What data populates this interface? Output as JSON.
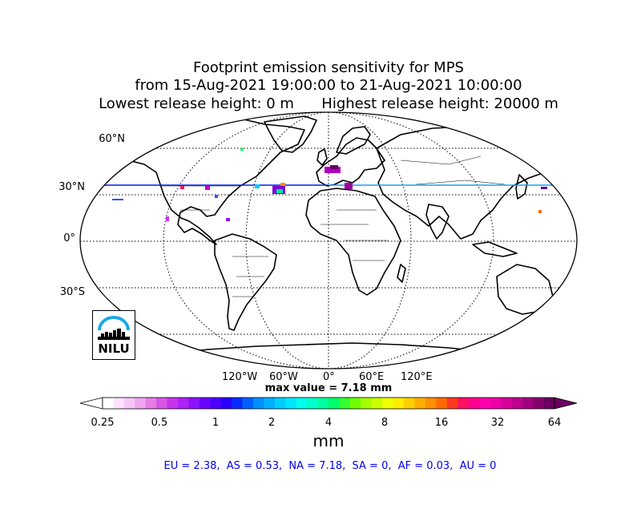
{
  "title": {
    "line1": "Footprint emission sensitivity for MPS",
    "line2": "from 15-Aug-2021 19:00:00 to 21-Aug-2021 10:00:00",
    "line3": "Lowest release height: 0 m      Highest release height: 20000 m"
  },
  "map": {
    "projection": "robinson",
    "lat_labels": [
      "60°N",
      "30°N",
      "0°",
      "30°S"
    ],
    "lon_labels": [
      "120°W",
      "60°W",
      "0°",
      "60°E",
      "120°E"
    ],
    "graticule_style": "dotted"
  },
  "logo": {
    "text": "NILU"
  },
  "max_value_text": "max value = 7.18 mm",
  "colorbar": {
    "unit": "mm",
    "ticks": [
      "0.25",
      "0.5",
      "1",
      "2",
      "4",
      "8",
      "16",
      "32",
      "64"
    ],
    "colors": [
      "#ffffff",
      "#fde4fd",
      "#f7c6f7",
      "#f0a6f0",
      "#e67ce6",
      "#d856e6",
      "#c833ee",
      "#ad22f5",
      "#8d11fb",
      "#6a04ff",
      "#4e00ff",
      "#2a00ff",
      "#0a2bff",
      "#0060ff",
      "#0090ff",
      "#00b0ff",
      "#00cfff",
      "#00e8ff",
      "#00ffee",
      "#00ffcc",
      "#00ffa0",
      "#00ff6a",
      "#33ff33",
      "#70ff00",
      "#a6ff00",
      "#ccff00",
      "#f0ff00",
      "#ffee00",
      "#ffd000",
      "#ffb000",
      "#ff9000",
      "#ff6a00",
      "#ff3a20",
      "#ff1060",
      "#ff0090",
      "#ff00b0",
      "#ee00a8",
      "#d8009c",
      "#c00090",
      "#a20080",
      "#86006c",
      "#6a0060"
    ]
  },
  "regions_text": "EU = 2.38,  AS = 0.53,  NA = 7.18,  SA = 0,  AF = 0.03,  AU = 0"
}
